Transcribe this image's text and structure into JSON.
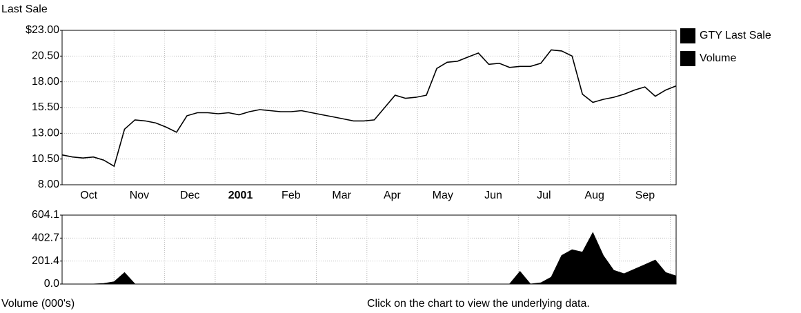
{
  "chart_data": [
    {
      "type": "line",
      "ylabel": "Last Sale",
      "xtick_labels": [
        "Oct",
        "Nov",
        "Dec",
        "2001",
        "Feb",
        "Mar",
        "Apr",
        "May",
        "Jun",
        "Jul",
        "Aug",
        "Sep"
      ],
      "series": [
        {
          "name": "GTY Last Sale",
          "color": "#000000",
          "values": [
            10.9,
            10.7,
            10.6,
            10.7,
            10.4,
            9.8,
            13.4,
            14.3,
            14.2,
            14.0,
            13.6,
            13.1,
            14.7,
            15.0,
            15.0,
            14.9,
            15.0,
            14.8,
            15.1,
            15.3,
            15.2,
            15.1,
            15.1,
            15.2,
            15.0,
            14.8,
            14.6,
            14.4,
            14.2,
            14.2,
            14.3,
            15.5,
            16.7,
            16.4,
            16.5,
            16.7,
            19.3,
            19.9,
            20.0,
            20.4,
            20.8,
            19.7,
            19.8,
            19.4,
            19.5,
            19.5,
            19.8,
            21.1,
            21.0,
            20.5,
            16.8,
            16.0,
            16.3,
            16.5,
            16.8,
            17.2,
            17.5,
            16.6,
            17.2,
            17.6
          ]
        }
      ],
      "ylim": [
        8,
        23
      ],
      "yticks": [
        {
          "value": 8,
          "label": "8.00"
        },
        {
          "value": 10.5,
          "label": "10.50"
        },
        {
          "value": 13,
          "label": "13.00"
        },
        {
          "value": 15.5,
          "label": "15.50"
        },
        {
          "value": 18,
          "label": "18.00"
        },
        {
          "value": 20.5,
          "label": "20.50"
        },
        {
          "value": 23,
          "label": "$23.00"
        }
      ],
      "grid": true,
      "legend": "right"
    },
    {
      "type": "area",
      "ylabel": "Volume (000's)",
      "note": "Click on the chart to view the underlying data.",
      "series": [
        {
          "name": "Volume",
          "color": "#000000",
          "values": [
            0,
            0,
            0,
            0,
            5,
            20,
            100,
            0,
            0,
            0,
            0,
            0,
            0,
            0,
            0,
            0,
            0,
            0,
            0,
            0,
            0,
            0,
            0,
            0,
            0,
            0,
            0,
            0,
            0,
            0,
            0,
            0,
            0,
            0,
            0,
            0,
            0,
            0,
            0,
            0,
            0,
            0,
            0,
            0,
            110,
            0,
            10,
            60,
            250,
            300,
            280,
            450,
            250,
            120,
            90,
            130,
            170,
            210,
            100,
            70
          ]
        }
      ],
      "ylim": [
        0,
        604.1
      ],
      "yticks": [
        {
          "value": 0,
          "label": "0.0"
        },
        201.4,
        402.7,
        604.1
      ],
      "grid": true
    }
  ]
}
